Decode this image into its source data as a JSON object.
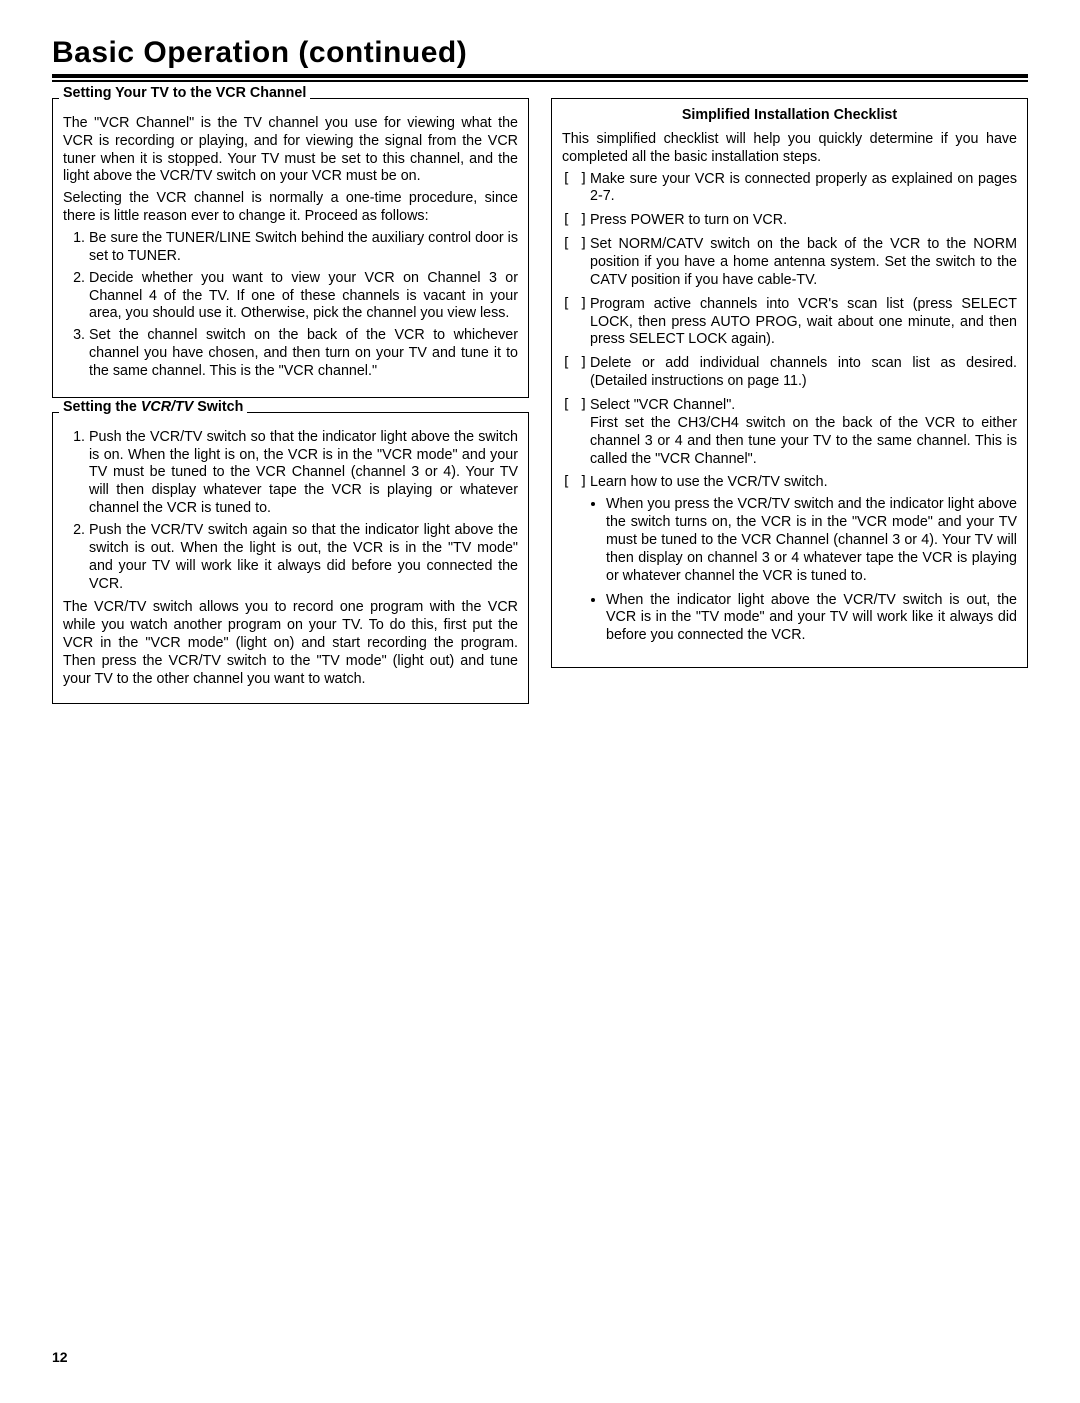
{
  "page": {
    "title": "Basic Operation (continued)",
    "number": "12"
  },
  "left": {
    "section1": {
      "heading": "Setting Your TV to the VCR Channel",
      "p1": "The \"VCR Channel\" is the TV channel you use for viewing what the VCR is recording or playing, and for viewing the signal from the VCR tuner when it is stopped. Your TV must be set to this channel, and the light above the VCR/TV switch on your VCR must be on.",
      "p2": "Selecting the VCR channel is normally a one-time procedure, since there is little reason ever to change it. Proceed as follows:",
      "ol": [
        "Be sure the TUNER/LINE Switch behind the auxiliary control door is set to TUNER.",
        "Decide whether you want to view your VCR on Channel 3 or Channel 4 of the TV. If one of these channels is vacant in your area, you should use it. Otherwise, pick the channel you view less.",
        "Set the channel switch on the back of the VCR to whichever channel you have chosen, and then turn on your TV and tune it to the same channel. This is the \"VCR channel.\""
      ]
    },
    "section2": {
      "heading": "Setting the VCR/TV Switch",
      "ol": [
        "Push the VCR/TV switch so that the indicator light above the switch is on. When the light is on, the VCR is in the \"VCR mode\" and your TV must be tuned to the VCR Channel (channel 3 or 4). Your TV will then display whatever tape the VCR is playing or whatever channel the VCR is tuned to.",
        "Push the VCR/TV switch again so that the indicator light above the switch is out. When the light is out, the VCR is in the \"TV mode\" and your TV will work like it always did before you connected the VCR."
      ],
      "p1": "The VCR/TV switch allows you to record one program with the VCR while you watch another program on your TV. To do this, first put the VCR in the \"VCR mode\" (light on) and start recording the program. Then press the VCR/TV switch to the \"TV mode\" (light out) and tune your TV to the other channel you want to watch."
    }
  },
  "right": {
    "heading": "Simplified Installation Checklist",
    "intro": "This simplified checklist will help you quickly determine if you have completed all the basic installation steps.",
    "items": [
      {
        "text": "Make sure your VCR is connected properly as explained on pages 2-7."
      },
      {
        "text": "Press POWER to turn on VCR."
      },
      {
        "text": "Set NORM/CATV switch on the back of the VCR to the NORM position if you have a home antenna system. Set the switch to the CATV position if you have cable-TV."
      },
      {
        "text": "Program active channels into VCR's scan list (press SELECT LOCK, then press AUTO PROG, wait about one minute, and then press SELECT LOCK again)."
      },
      {
        "text": "Delete or add individual channels into scan list as desired. (Detailed instructions on page 11.)"
      },
      {
        "text": "Select \"VCR Channel\".",
        "extra": "First set the CH3/CH4 switch on the back of the VCR to either channel 3 or 4 and then tune your TV to the same channel. This is called the \"VCR Channel\"."
      },
      {
        "text": "Learn how to use the VCR/TV switch.",
        "bullets": [
          "When you press the VCR/TV switch and the indicator light above the switch turns on, the VCR is in the \"VCR mode\" and your TV must be tuned to the VCR Channel (channel 3 or 4). Your TV will then display on channel 3 or 4 whatever tape the VCR is playing or whatever channel the VCR is tuned to.",
          "When the indicator light above the VCR/TV switch is out, the VCR is in the \"TV mode\" and your TV will work like it always did before you connected the VCR."
        ]
      }
    ],
    "checkmark": "[   ]"
  }
}
